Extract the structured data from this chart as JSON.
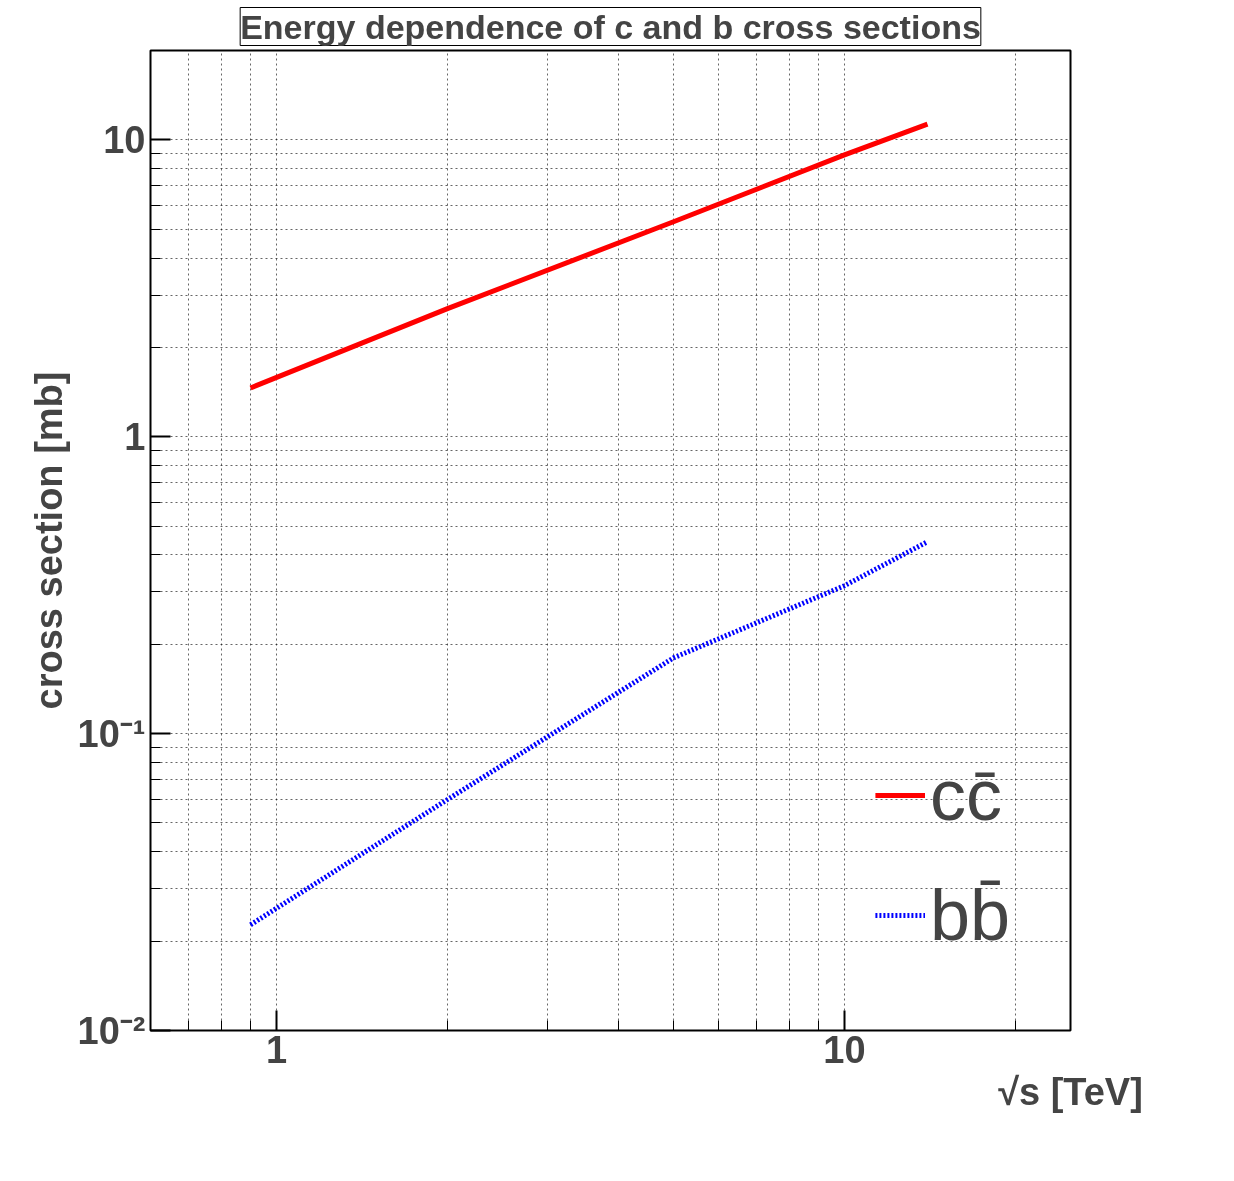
{
  "chart_data": {
    "type": "line",
    "title": "Energy dependence of c and b cross sections",
    "xlabel": "√s [TeV]",
    "ylabel": "cross section [mb]",
    "x": [
      0.9,
      2,
      5,
      10,
      14
    ],
    "series": [
      {
        "name": "cc̄",
        "color": "#ff0000",
        "line_style": "solid",
        "values": [
          1.46,
          2.7,
          5.3,
          8.9,
          11.3
        ]
      },
      {
        "name": "bb̄",
        "color": "#0000ff",
        "line_style": "dotted",
        "values": [
          0.0227,
          0.06,
          0.18,
          0.315,
          0.443
        ]
      }
    ],
    "log": "xy",
    "xlim": [
      0.6,
      25
    ],
    "ylim": [
      0.01,
      20
    ],
    "xticks": [
      1,
      10
    ],
    "yticks": [
      {
        "value": 0.01,
        "label": "10⁻²"
      },
      {
        "value": 0.1,
        "label": "10⁻¹"
      },
      1,
      10
    ],
    "grid": true,
    "legend": "bottom right"
  }
}
